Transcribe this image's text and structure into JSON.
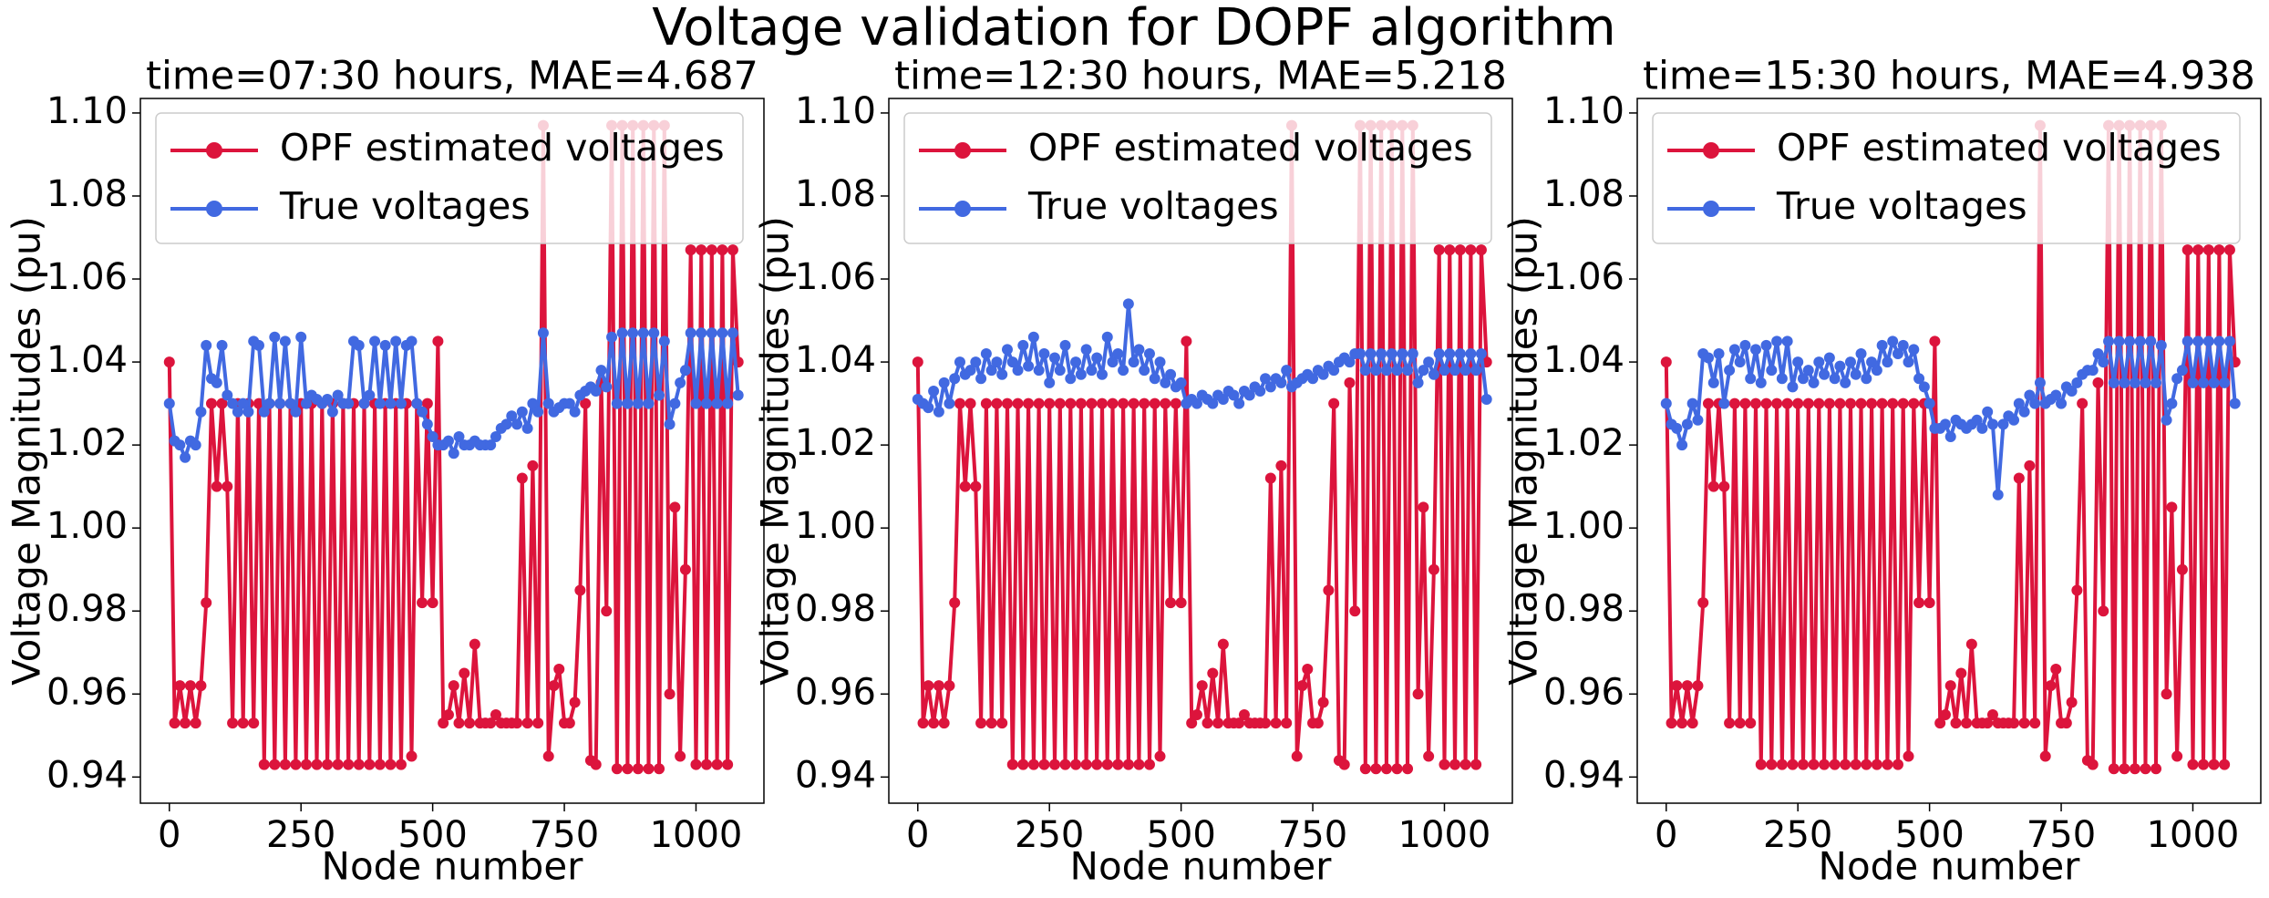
{
  "title": "Voltage validation for DOPF algorithm",
  "chart_data": [
    {
      "type": "line",
      "title": "time=07:30 hours, MAE=4.687",
      "x_label": "Node number",
      "y_label": "Voltage Magnitudes (pu)",
      "x": [
        0,
        10,
        20,
        30,
        40,
        50,
        60,
        70,
        80,
        90,
        100,
        110,
        120,
        130,
        140,
        150,
        160,
        170,
        180,
        190,
        200,
        210,
        220,
        230,
        240,
        250,
        260,
        270,
        280,
        290,
        300,
        310,
        320,
        330,
        340,
        350,
        360,
        370,
        380,
        390,
        400,
        410,
        420,
        430,
        440,
        450,
        460,
        470,
        480,
        490,
        500,
        510,
        520,
        530,
        540,
        550,
        560,
        570,
        580,
        590,
        600,
        610,
        620,
        630,
        640,
        650,
        660,
        670,
        680,
        690,
        700,
        710,
        720,
        730,
        740,
        750,
        760,
        770,
        780,
        790,
        800,
        810,
        820,
        830,
        840,
        850,
        860,
        870,
        880,
        890,
        900,
        910,
        920,
        930,
        940,
        950,
        960,
        970,
        980,
        990,
        1000,
        1010,
        1020,
        1030,
        1040,
        1050,
        1060,
        1070,
        1080
      ],
      "series": [
        {
          "name": "OPF estimated voltages",
          "color": "#dc143c",
          "values": [
            1.04,
            0.953,
            0.962,
            0.953,
            0.962,
            0.953,
            0.962,
            0.982,
            1.03,
            1.01,
            1.03,
            1.01,
            0.953,
            1.03,
            0.953,
            1.03,
            0.953,
            1.03,
            0.943,
            1.03,
            0.943,
            1.03,
            0.943,
            1.03,
            0.943,
            1.03,
            0.943,
            1.03,
            0.943,
            1.03,
            0.943,
            1.03,
            0.943,
            1.03,
            0.943,
            1.03,
            0.943,
            1.03,
            0.943,
            1.03,
            0.943,
            1.03,
            0.943,
            1.03,
            0.943,
            1.03,
            0.945,
            1.03,
            0.982,
            1.03,
            0.982,
            1.045,
            0.953,
            0.955,
            0.962,
            0.953,
            0.965,
            0.953,
            0.972,
            0.953,
            0.953,
            0.953,
            0.955,
            0.953,
            0.953,
            0.953,
            0.953,
            1.012,
            0.953,
            1.015,
            0.953,
            1.097,
            0.945,
            0.962,
            0.966,
            0.953,
            0.953,
            0.958,
            0.985,
            1.03,
            0.944,
            0.943,
            1.035,
            0.98,
            1.097,
            0.942,
            1.097,
            0.942,
            1.097,
            0.942,
            1.097,
            0.942,
            1.097,
            0.942,
            1.097,
            0.96,
            1.005,
            0.945,
            0.99,
            1.067,
            0.943,
            1.067,
            0.943,
            1.067,
            0.943,
            1.067,
            0.943,
            1.067,
            1.04
          ]
        },
        {
          "name": "True voltages",
          "color": "#4169e1",
          "values": [
            1.03,
            1.021,
            1.02,
            1.017,
            1.021,
            1.02,
            1.028,
            1.044,
            1.036,
            1.035,
            1.044,
            1.032,
            1.03,
            1.028,
            1.03,
            1.028,
            1.045,
            1.044,
            1.028,
            1.03,
            1.046,
            1.03,
            1.045,
            1.03,
            1.028,
            1.046,
            1.03,
            1.032,
            1.031,
            1.03,
            1.031,
            1.028,
            1.032,
            1.03,
            1.03,
            1.045,
            1.044,
            1.03,
            1.032,
            1.045,
            1.03,
            1.044,
            1.03,
            1.045,
            1.03,
            1.044,
            1.045,
            1.03,
            1.028,
            1.025,
            1.022,
            1.02,
            1.02,
            1.021,
            1.018,
            1.022,
            1.02,
            1.02,
            1.021,
            1.02,
            1.02,
            1.02,
            1.022,
            1.024,
            1.025,
            1.027,
            1.025,
            1.028,
            1.024,
            1.03,
            1.028,
            1.047,
            1.03,
            1.028,
            1.029,
            1.03,
            1.03,
            1.028,
            1.032,
            1.033,
            1.034,
            1.033,
            1.038,
            1.034,
            1.046,
            1.03,
            1.047,
            1.03,
            1.047,
            1.03,
            1.047,
            1.03,
            1.047,
            1.032,
            1.045,
            1.025,
            1.03,
            1.035,
            1.038,
            1.047,
            1.03,
            1.047,
            1.03,
            1.047,
            1.03,
            1.047,
            1.03,
            1.047,
            1.032
          ]
        }
      ],
      "xlim": [
        -55,
        1129
      ],
      "ylim": [
        0.9337,
        1.1035
      ],
      "xticks": [
        0,
        250,
        500,
        750,
        1000
      ],
      "yticks": [
        0.94,
        0.96,
        0.98,
        {
          "value": 1.0,
          "label": "1.00"
        },
        1.02,
        1.04,
        1.06,
        1.08,
        {
          "value": 1.1,
          "label": "1.10"
        }
      ],
      "legend": "upper left"
    },
    {
      "type": "line",
      "title": "time=12:30 hours, MAE=5.218",
      "x_label": "Node number",
      "y_label": "Voltage Magnitudes (pu)",
      "x": [
        0,
        10,
        20,
        30,
        40,
        50,
        60,
        70,
        80,
        90,
        100,
        110,
        120,
        130,
        140,
        150,
        160,
        170,
        180,
        190,
        200,
        210,
        220,
        230,
        240,
        250,
        260,
        270,
        280,
        290,
        300,
        310,
        320,
        330,
        340,
        350,
        360,
        370,
        380,
        390,
        400,
        410,
        420,
        430,
        440,
        450,
        460,
        470,
        480,
        490,
        500,
        510,
        520,
        530,
        540,
        550,
        560,
        570,
        580,
        590,
        600,
        610,
        620,
        630,
        640,
        650,
        660,
        670,
        680,
        690,
        700,
        710,
        720,
        730,
        740,
        750,
        760,
        770,
        780,
        790,
        800,
        810,
        820,
        830,
        840,
        850,
        860,
        870,
        880,
        890,
        900,
        910,
        920,
        930,
        940,
        950,
        960,
        970,
        980,
        990,
        1000,
        1010,
        1020,
        1030,
        1040,
        1050,
        1060,
        1070,
        1080
      ],
      "series": [
        {
          "name": "OPF estimated voltages",
          "color": "#dc143c",
          "values": [
            1.04,
            0.953,
            0.962,
            0.953,
            0.962,
            0.953,
            0.962,
            0.982,
            1.03,
            1.01,
            1.03,
            1.01,
            0.953,
            1.03,
            0.953,
            1.03,
            0.953,
            1.03,
            0.943,
            1.03,
            0.943,
            1.03,
            0.943,
            1.03,
            0.943,
            1.03,
            0.943,
            1.03,
            0.943,
            1.03,
            0.943,
            1.03,
            0.943,
            1.03,
            0.943,
            1.03,
            0.943,
            1.03,
            0.943,
            1.03,
            0.943,
            1.03,
            0.943,
            1.03,
            0.943,
            1.03,
            0.945,
            1.03,
            0.982,
            1.03,
            0.982,
            1.045,
            0.953,
            0.955,
            0.962,
            0.953,
            0.965,
            0.953,
            0.972,
            0.953,
            0.953,
            0.953,
            0.955,
            0.953,
            0.953,
            0.953,
            0.953,
            1.012,
            0.953,
            1.015,
            0.953,
            1.097,
            0.945,
            0.962,
            0.966,
            0.953,
            0.953,
            0.958,
            0.985,
            1.03,
            0.944,
            0.943,
            1.035,
            0.98,
            1.097,
            0.942,
            1.097,
            0.942,
            1.097,
            0.942,
            1.097,
            0.942,
            1.097,
            0.942,
            1.097,
            0.96,
            1.005,
            0.945,
            0.99,
            1.067,
            0.943,
            1.067,
            0.943,
            1.067,
            0.943,
            1.067,
            0.943,
            1.067,
            1.04
          ]
        },
        {
          "name": "True voltages",
          "color": "#4169e1",
          "values": [
            1.031,
            1.03,
            1.029,
            1.033,
            1.028,
            1.035,
            1.03,
            1.036,
            1.04,
            1.037,
            1.038,
            1.04,
            1.036,
            1.042,
            1.038,
            1.04,
            1.037,
            1.043,
            1.04,
            1.038,
            1.044,
            1.039,
            1.046,
            1.038,
            1.042,
            1.035,
            1.041,
            1.038,
            1.044,
            1.036,
            1.04,
            1.037,
            1.043,
            1.038,
            1.041,
            1.037,
            1.046,
            1.04,
            1.042,
            1.038,
            1.054,
            1.04,
            1.043,
            1.038,
            1.042,
            1.036,
            1.04,
            1.035,
            1.037,
            1.034,
            1.035,
            1.03,
            1.031,
            1.03,
            1.032,
            1.031,
            1.03,
            1.032,
            1.031,
            1.033,
            1.032,
            1.03,
            1.033,
            1.032,
            1.034,
            1.033,
            1.036,
            1.034,
            1.036,
            1.035,
            1.038,
            1.034,
            1.035,
            1.036,
            1.037,
            1.036,
            1.038,
            1.037,
            1.039,
            1.038,
            1.04,
            1.041,
            1.04,
            1.042,
            1.042,
            1.038,
            1.042,
            1.038,
            1.042,
            1.038,
            1.042,
            1.038,
            1.042,
            1.038,
            1.042,
            1.035,
            1.038,
            1.04,
            1.037,
            1.042,
            1.038,
            1.042,
            1.038,
            1.042,
            1.038,
            1.042,
            1.038,
            1.042,
            1.031
          ]
        }
      ],
      "xlim": [
        -55,
        1129
      ],
      "ylim": [
        0.9337,
        1.1035
      ],
      "xticks": [
        0,
        250,
        500,
        750,
        1000
      ],
      "yticks": [
        0.94,
        0.96,
        0.98,
        {
          "value": 1.0,
          "label": "1.00"
        },
        1.02,
        1.04,
        1.06,
        1.08,
        {
          "value": 1.1,
          "label": "1.10"
        }
      ],
      "legend": "upper left"
    },
    {
      "type": "line",
      "title": "time=15:30 hours, MAE=4.938",
      "x_label": "Node number",
      "y_label": "Voltage Magnitudes (pu)",
      "x": [
        0,
        10,
        20,
        30,
        40,
        50,
        60,
        70,
        80,
        90,
        100,
        110,
        120,
        130,
        140,
        150,
        160,
        170,
        180,
        190,
        200,
        210,
        220,
        230,
        240,
        250,
        260,
        270,
        280,
        290,
        300,
        310,
        320,
        330,
        340,
        350,
        360,
        370,
        380,
        390,
        400,
        410,
        420,
        430,
        440,
        450,
        460,
        470,
        480,
        490,
        500,
        510,
        520,
        530,
        540,
        550,
        560,
        570,
        580,
        590,
        600,
        610,
        620,
        630,
        640,
        650,
        660,
        670,
        680,
        690,
        700,
        710,
        720,
        730,
        740,
        750,
        760,
        770,
        780,
        790,
        800,
        810,
        820,
        830,
        840,
        850,
        860,
        870,
        880,
        890,
        900,
        910,
        920,
        930,
        940,
        950,
        960,
        970,
        980,
        990,
        1000,
        1010,
        1020,
        1030,
        1040,
        1050,
        1060,
        1070,
        1080
      ],
      "series": [
        {
          "name": "OPF estimated voltages",
          "color": "#dc143c",
          "values": [
            1.04,
            0.953,
            0.962,
            0.953,
            0.962,
            0.953,
            0.962,
            0.982,
            1.03,
            1.01,
            1.03,
            1.01,
            0.953,
            1.03,
            0.953,
            1.03,
            0.953,
            1.03,
            0.943,
            1.03,
            0.943,
            1.03,
            0.943,
            1.03,
            0.943,
            1.03,
            0.943,
            1.03,
            0.943,
            1.03,
            0.943,
            1.03,
            0.943,
            1.03,
            0.943,
            1.03,
            0.943,
            1.03,
            0.943,
            1.03,
            0.943,
            1.03,
            0.943,
            1.03,
            0.943,
            1.03,
            0.945,
            1.03,
            0.982,
            1.03,
            0.982,
            1.045,
            0.953,
            0.955,
            0.962,
            0.953,
            0.965,
            0.953,
            0.972,
            0.953,
            0.953,
            0.953,
            0.955,
            0.953,
            0.953,
            0.953,
            0.953,
            1.012,
            0.953,
            1.015,
            0.953,
            1.097,
            0.945,
            0.962,
            0.966,
            0.953,
            0.953,
            0.958,
            0.985,
            1.03,
            0.944,
            0.943,
            1.035,
            0.98,
            1.097,
            0.942,
            1.097,
            0.942,
            1.097,
            0.942,
            1.097,
            0.942,
            1.097,
            0.942,
            1.097,
            0.96,
            1.005,
            0.945,
            0.99,
            1.067,
            0.943,
            1.067,
            0.943,
            1.067,
            0.943,
            1.067,
            0.943,
            1.067,
            1.04
          ]
        },
        {
          "name": "True voltages",
          "color": "#4169e1",
          "values": [
            1.03,
            1.025,
            1.024,
            1.02,
            1.025,
            1.03,
            1.026,
            1.042,
            1.041,
            1.035,
            1.042,
            1.03,
            1.038,
            1.043,
            1.04,
            1.044,
            1.036,
            1.043,
            1.035,
            1.044,
            1.038,
            1.045,
            1.036,
            1.045,
            1.034,
            1.04,
            1.036,
            1.038,
            1.035,
            1.04,
            1.037,
            1.041,
            1.036,
            1.039,
            1.035,
            1.04,
            1.037,
            1.042,
            1.036,
            1.04,
            1.038,
            1.044,
            1.04,
            1.045,
            1.042,
            1.044,
            1.04,
            1.043,
            1.036,
            1.034,
            1.03,
            1.024,
            1.024,
            1.025,
            1.022,
            1.026,
            1.025,
            1.024,
            1.025,
            1.026,
            1.024,
            1.028,
            1.025,
            1.008,
            1.025,
            1.027,
            1.026,
            1.03,
            1.028,
            1.032,
            1.03,
            1.035,
            1.03,
            1.031,
            1.032,
            1.03,
            1.034,
            1.033,
            1.035,
            1.037,
            1.038,
            1.038,
            1.042,
            1.04,
            1.045,
            1.035,
            1.045,
            1.035,
            1.045,
            1.035,
            1.045,
            1.035,
            1.045,
            1.035,
            1.044,
            1.026,
            1.03,
            1.036,
            1.038,
            1.045,
            1.035,
            1.045,
            1.035,
            1.045,
            1.035,
            1.045,
            1.035,
            1.045,
            1.03
          ]
        }
      ],
      "xlim": [
        -55,
        1129
      ],
      "ylim": [
        0.9337,
        1.1035
      ],
      "xticks": [
        0,
        250,
        500,
        750,
        1000
      ],
      "yticks": [
        0.94,
        0.96,
        0.98,
        {
          "value": 1.0,
          "label": "1.00"
        },
        1.02,
        1.04,
        1.06,
        1.08,
        {
          "value": 1.1,
          "label": "1.10"
        }
      ],
      "legend": "upper left"
    }
  ]
}
